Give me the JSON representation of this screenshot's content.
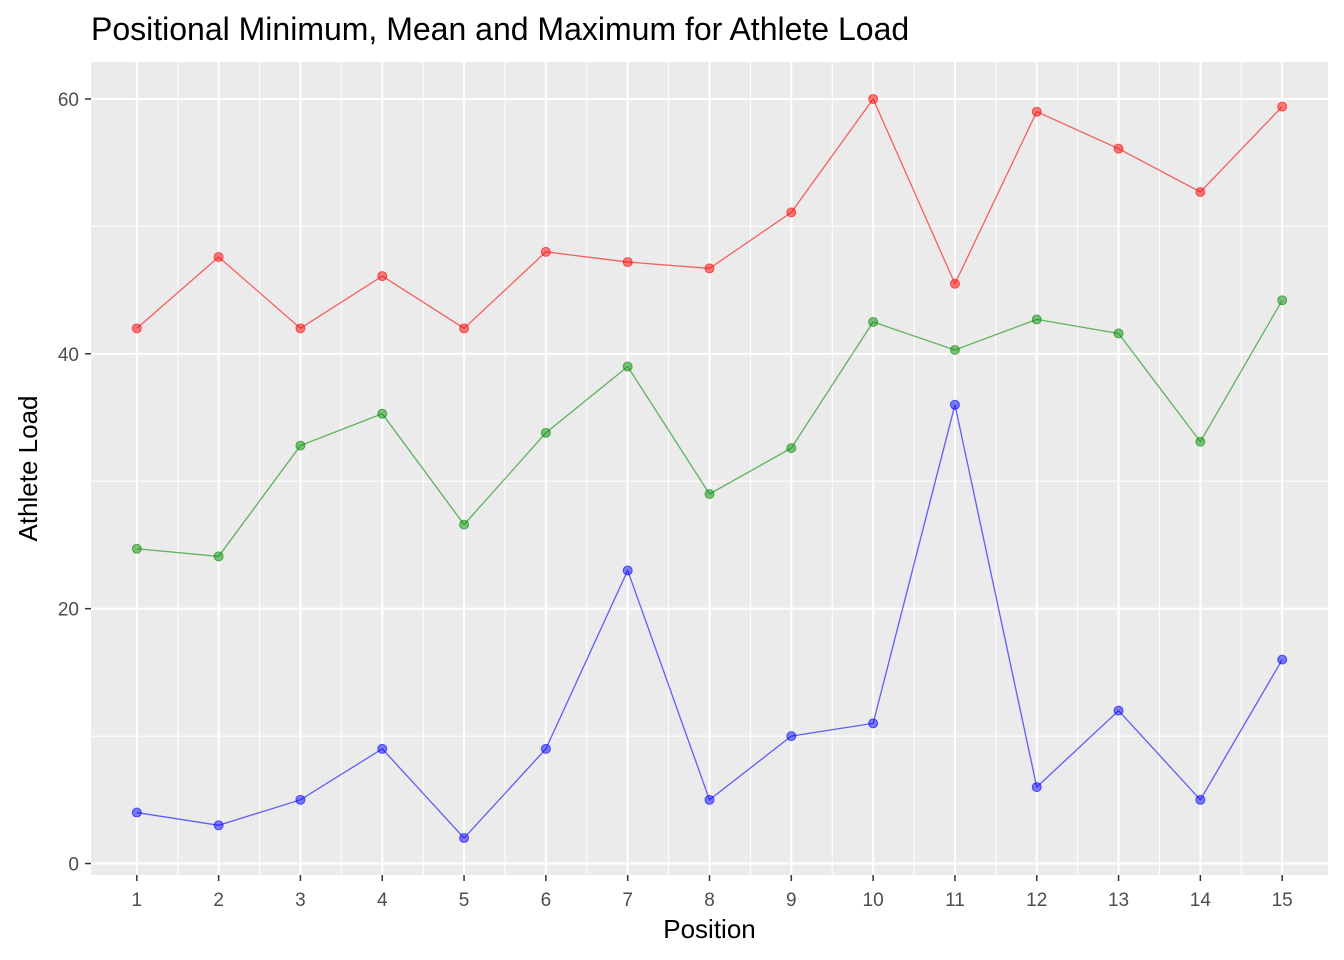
{
  "chart_data": {
    "type": "line",
    "title": "Positional Minimum, Mean and Maximum for Athlete Load",
    "xlabel": "Position",
    "ylabel": "Athlete Load",
    "x": [
      1,
      2,
      3,
      4,
      5,
      6,
      7,
      8,
      9,
      10,
      11,
      12,
      13,
      14,
      15
    ],
    "x_ticks": [
      "1",
      "2",
      "3",
      "4",
      "5",
      "6",
      "7",
      "8",
      "9",
      "10",
      "11",
      "12",
      "13",
      "14",
      "15"
    ],
    "y_ticks": [
      "0",
      "20",
      "40",
      "60"
    ],
    "xlim": [
      0.44,
      15.56
    ],
    "ylim": [
      -0.9,
      62.9
    ],
    "grid": true,
    "legend": "none",
    "panel_background": "#ebebeb",
    "series": [
      {
        "color": "#ff0000",
        "values": [
          42,
          47.6,
          42,
          46.1,
          42,
          48,
          47.2,
          46.7,
          51.1,
          60,
          45.5,
          59,
          56.1,
          52.7,
          59.4
        ]
      },
      {
        "color": "#008b00",
        "values": [
          24.7,
          24.1,
          32.8,
          35.3,
          26.6,
          33.8,
          39,
          29,
          32.6,
          42.5,
          40.3,
          42.7,
          41.6,
          33.1,
          44.2
        ]
      },
      {
        "color": "#0000ff",
        "values": [
          4,
          3,
          5,
          9,
          2,
          9,
          23,
          5,
          10,
          11,
          36,
          6,
          12,
          5,
          16
        ]
      }
    ]
  }
}
